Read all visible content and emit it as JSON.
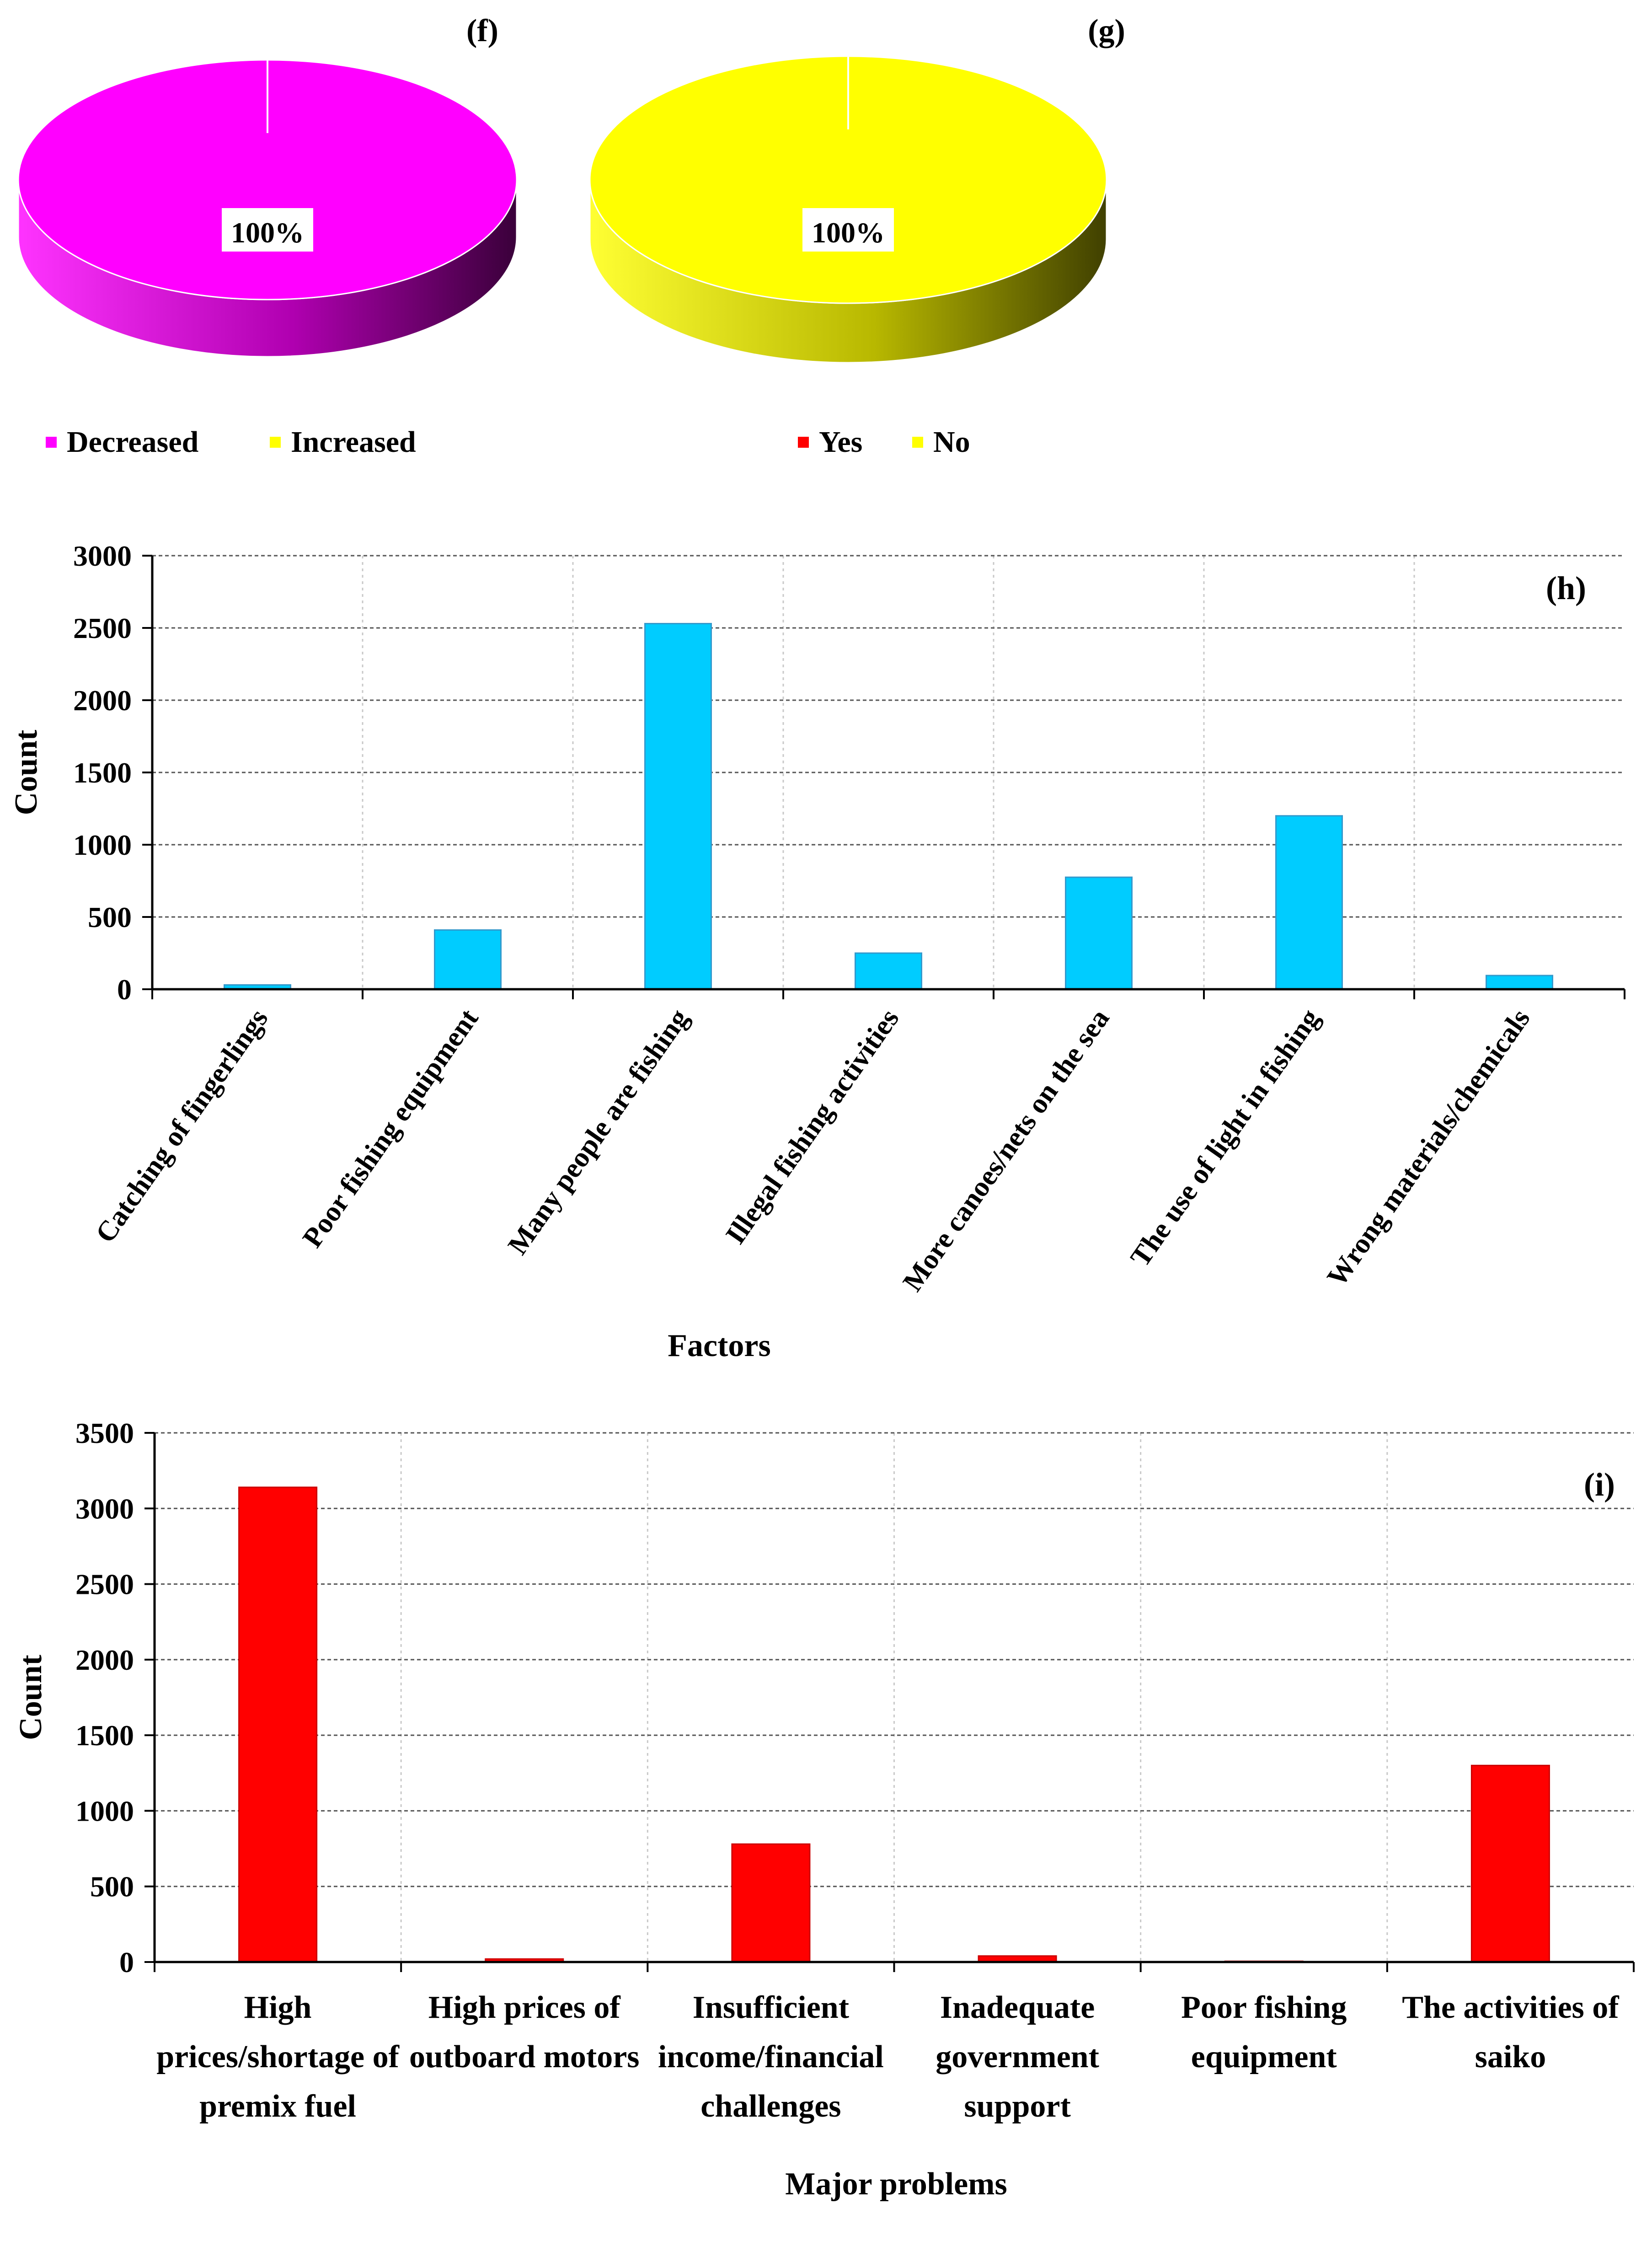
{
  "chart_data": [
    {
      "id": "f",
      "type": "pie",
      "panel_label": "(f)",
      "slices": [
        {
          "name": "Decreased",
          "value": 100,
          "label": "100%",
          "color": "#ff00ff"
        },
        {
          "name": "Increased",
          "value": 0,
          "color": "#ffff00"
        }
      ],
      "legend": [
        {
          "name": "Decreased",
          "color": "#ff00ff"
        },
        {
          "name": "Increased",
          "color": "#ffff00"
        }
      ],
      "legend_position": "bottom"
    },
    {
      "id": "g",
      "type": "pie",
      "panel_label": "(g)",
      "slices": [
        {
          "name": "Yes",
          "value": 0,
          "color": "#ff0000"
        },
        {
          "name": "No",
          "value": 100,
          "label": "100%",
          "color": "#ffff00"
        }
      ],
      "legend": [
        {
          "name": "Yes",
          "color": "#ff0000"
        },
        {
          "name": "No",
          "color": "#ffff00"
        }
      ],
      "legend_position": "bottom"
    },
    {
      "id": "h",
      "type": "bar",
      "panel_label": "(h)",
      "categories": [
        "Catching of fingerlings",
        "Poor fishing equipment",
        "Many people are fishing",
        "Illegal fishing activities",
        "More canoes/nets on the sea",
        "The use of light in fishing",
        "Wrong materials/chemicals"
      ],
      "values": [
        30,
        410,
        2530,
        250,
        775,
        1200,
        95
      ],
      "xlabel": "Factors",
      "ylabel": "Count",
      "ylim": [
        0,
        3000
      ],
      "yticks": [
        0,
        500,
        1000,
        1500,
        2000,
        2500,
        3000
      ],
      "bar_color": "#00ccff",
      "grid": true
    },
    {
      "id": "i",
      "type": "bar",
      "panel_label": "(i)",
      "categories": [
        [
          "High",
          "prices/shortage of",
          "premix fuel"
        ],
        [
          "High prices of",
          "outboard motors"
        ],
        [
          "Insufficient",
          "income/financial",
          "challenges"
        ],
        [
          "Inadequate",
          "government",
          "support"
        ],
        [
          "Poor fishing",
          "equipment"
        ],
        [
          "The activities of",
          "saiko"
        ]
      ],
      "values": [
        3140,
        20,
        780,
        40,
        5,
        1300
      ],
      "xlabel": "Major problems",
      "ylabel": "Count",
      "ylim": [
        0,
        3500
      ],
      "yticks": [
        0,
        500,
        1000,
        1500,
        2000,
        2500,
        3000,
        3500
      ],
      "bar_color": "#ff0000",
      "grid": true
    }
  ]
}
